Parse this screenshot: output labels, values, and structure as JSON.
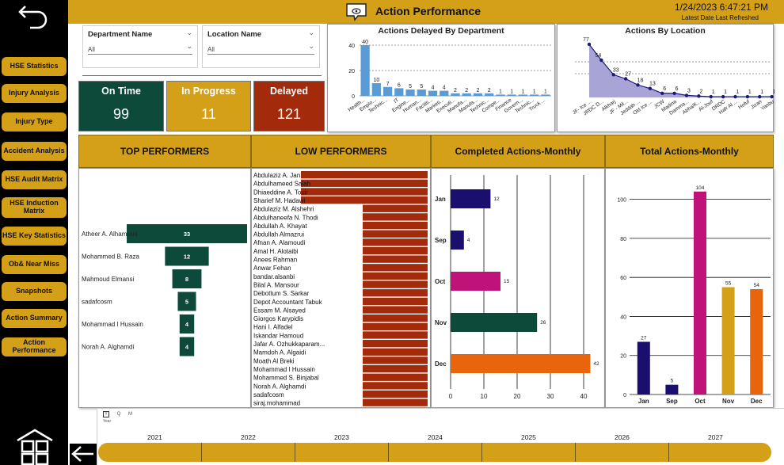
{
  "header": {
    "title": "Action Performance",
    "datetime": "1/24/2023 6:47:21 PM",
    "refresh_label": "Latest Date Last Refreshed"
  },
  "sidebar": {
    "items": [
      {
        "label": "HSE Statistics"
      },
      {
        "label": "Injury Analysis"
      },
      {
        "label": "Injury Type"
      },
      {
        "label": "Accident Analysis"
      },
      {
        "label": "HSE Audit Matrix"
      },
      {
        "label": "HSE Induction Matrix"
      },
      {
        "label": "HSE Key Statistics"
      },
      {
        "label": "Ob& Near Miss"
      },
      {
        "label": "Snapshots"
      },
      {
        "label": "Action Summary"
      },
      {
        "label": "Action Performance"
      }
    ]
  },
  "filters": {
    "department": {
      "label": "Department Name",
      "value": "All"
    },
    "location": {
      "label": "Location Name",
      "value": "All"
    }
  },
  "kpis": {
    "on_time": {
      "label": "On Time",
      "value": "99",
      "color": "#0d4a3a"
    },
    "in_progress": {
      "label": "In Progress",
      "value": "11",
      "color": "#d4a017"
    },
    "delayed": {
      "label": "Delayed",
      "value": "121",
      "color": "#a32a0b"
    }
  },
  "sections": {
    "top_performers": "TOP PERFORMERS",
    "low_performers": "LOW PERFORMERS",
    "completed_monthly": "Completed Actions-Monthly",
    "total_monthly": "Total Actions-Monthly"
  },
  "timeline": {
    "years": [
      "2021",
      "2022",
      "2023",
      "2024",
      "2025",
      "2026",
      "2027"
    ],
    "legend_y": "Y",
    "legend_q": "Q",
    "legend_m": "M",
    "legend_year": "Year"
  },
  "chart_data": [
    {
      "type": "bar",
      "title": "Actions Delayed By Department",
      "categories": [
        "Health...",
        "Emplo...",
        "Technic...",
        "IT",
        "Engine...",
        "Human...",
        "Faciliti...",
        "Marketi...",
        "Executi...",
        "Manufa...",
        "Manufa...",
        "Technic...",
        "Compe...",
        "Finance",
        "Govern...",
        "Technic...",
        "Truck ..."
      ],
      "values": [
        40,
        10,
        7,
        6,
        5,
        5,
        4,
        4,
        2,
        2,
        2,
        2,
        1,
        1,
        1,
        1,
        1
      ],
      "ylim": [
        0,
        45
      ],
      "yticks": [
        0,
        20,
        40
      ],
      "color": "#5b9bd5"
    },
    {
      "type": "area",
      "title": "Actions By Location",
      "categories": [
        "JF- Ice ...",
        "JRDC D...",
        "Alkharj",
        "JF - Mil...",
        "Jeddah ...",
        "Old Ice ...",
        "JCW",
        "Madina",
        "Damma...",
        "Abha/K...",
        "Al-Jouf",
        "DRDC",
        "Hafr Al ...",
        "Hofuf",
        "Jizan",
        "Yanbu"
      ],
      "values": [
        77,
        54,
        33,
        27,
        18,
        13,
        6,
        6,
        3,
        2,
        1,
        1,
        1,
        1,
        1,
        1
      ],
      "color": "#1a1a7a",
      "fill": "#a9a4d6"
    },
    {
      "type": "bar",
      "title": "TOP PERFORMERS",
      "categories": [
        "Atheer A. Alhamrani",
        "Mohammed B. Raza",
        "Mahmoud Elmansi",
        "sadafcosm",
        "Mohammad I Hussain",
        "Norah A. Alghamdi"
      ],
      "values": [
        33,
        12,
        8,
        5,
        4,
        4
      ],
      "color": "#0d4a3a"
    },
    {
      "type": "bar",
      "title": "LOW PERFORMERS",
      "categories": [
        "Abdulaziz A. Jan",
        "Abdulhameed Salah",
        "Dhiaeddine A. Touir",
        "Sharief M. Hadawi",
        "Abdulaziz M. Alshehri",
        "Abdulhaneefa N. Thodi",
        "Abdullah A. Khayat",
        "Abdullah Almazrui",
        "Afnan A. Alamoudi",
        "Amal H. Alotaibi",
        "Anees Rahman",
        "Anwar Fehan",
        "bandar.alsanbi",
        "Bilal A. Mansour",
        "Debottum S. Sarkar",
        "Depot Accountant Tabuk",
        "Essam M. Alsayed",
        "Giorgos Karypidis",
        "Hani I. Alfadel",
        "Iskandar Hamoud",
        "Jafar A. Ozhukkaparam...",
        "Mamdoh A. Algaidi",
        "Moath Al Breki",
        "Mohammad I Hussain",
        "Mohammed S. Binjabal",
        "Norah A. Alghamdi",
        "sadafcosm",
        "siraj.mohammad"
      ],
      "values": [
        2,
        2,
        2,
        2,
        1,
        1,
        1,
        1,
        1,
        1,
        1,
        1,
        1,
        1,
        1,
        1,
        1,
        1,
        1,
        1,
        1,
        1,
        1,
        1,
        1,
        1,
        1,
        1
      ],
      "color": "#a32a0b"
    },
    {
      "type": "bar",
      "title": "Completed Actions-Monthly",
      "orientation": "horizontal",
      "categories": [
        "Jan",
        "Sep",
        "Oct",
        "Nov",
        "Dec"
      ],
      "values": [
        12,
        4,
        15,
        26,
        42
      ],
      "colors": [
        "#1a0f6e",
        "#1a0f6e",
        "#c0137a",
        "#0d4a3a",
        "#e8650e"
      ],
      "xlim": [
        0,
        45
      ],
      "xticks": [
        0,
        10,
        20,
        30,
        40
      ]
    },
    {
      "type": "bar",
      "title": "Total Actions-Monthly",
      "categories": [
        "Jan",
        "Sep",
        "Oct",
        "Nov",
        "Dec"
      ],
      "values": [
        27,
        5,
        104,
        55,
        54
      ],
      "colors": [
        "#1a0f6e",
        "#1a0f6e",
        "#c0137a",
        "#d4a017",
        "#e8650e"
      ],
      "ylim": [
        0,
        110
      ],
      "yticks": [
        0,
        20,
        40,
        60,
        80,
        100
      ]
    }
  ]
}
